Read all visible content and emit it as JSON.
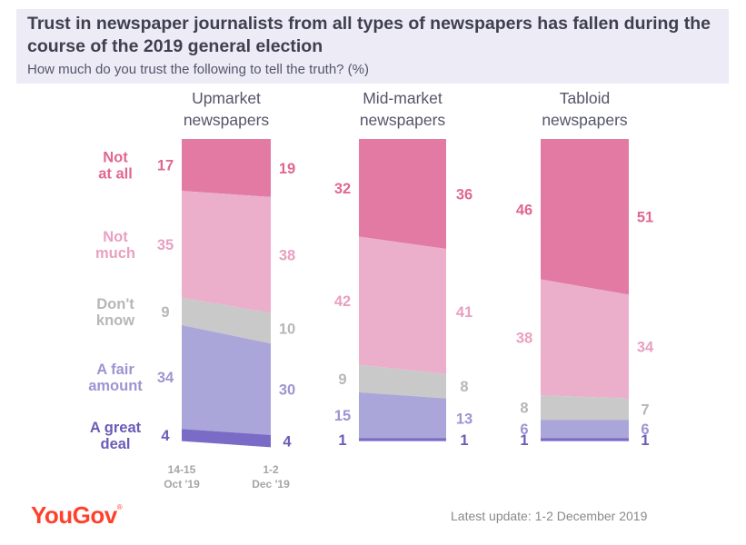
{
  "header": {
    "title": "Trust in newspaper journalists from all types of newspapers has fallen during the course of the 2019 general election",
    "subtitle": "How much do you trust the following to tell the truth? (%)"
  },
  "footer": {
    "logo": "YouGov",
    "note": "Latest update: 1-2 December 2019"
  },
  "chart_data": {
    "type": "area",
    "x_labels": [
      [
        "14-15",
        "Oct '19"
      ],
      [
        "1-2",
        "Dec '19"
      ]
    ],
    "categories": [
      {
        "key": "not_at_all",
        "label": [
          "Not",
          "at all"
        ],
        "color": "#e27aa3"
      },
      {
        "key": "not_much",
        "label": [
          "Not",
          "much"
        ],
        "color": "#ebaecb"
      },
      {
        "key": "dont_know",
        "label": [
          "Don't",
          "know"
        ],
        "color": "#c9c9c9"
      },
      {
        "key": "fair_amount",
        "label": [
          "A fair",
          "amount"
        ],
        "color": "#aba6da"
      },
      {
        "key": "great_deal",
        "label": [
          "A great",
          "deal"
        ],
        "color": "#7a6bc7"
      }
    ],
    "value_label_colors": {
      "not_at_all": "#e0688f",
      "not_much": "#ea9fc1",
      "dont_know": "#b7b7b7",
      "fair_amount": "#9d95d2",
      "great_deal": "#6c5bb8"
    },
    "panels": [
      {
        "name": [
          "Upmarket",
          "newspapers"
        ],
        "start": {
          "not_at_all": 17,
          "not_much": 35,
          "dont_know": 9,
          "fair_amount": 34,
          "great_deal": 4
        },
        "end": {
          "not_at_all": 19,
          "not_much": 38,
          "dont_know": 10,
          "fair_amount": 30,
          "great_deal": 4
        }
      },
      {
        "name": [
          "Mid-market",
          "newspapers"
        ],
        "start": {
          "not_at_all": 32,
          "not_much": 42,
          "dont_know": 9,
          "fair_amount": 15,
          "great_deal": 1
        },
        "end": {
          "not_at_all": 36,
          "not_much": 41,
          "dont_know": 8,
          "fair_amount": 13,
          "great_deal": 1
        }
      },
      {
        "name": [
          "Tabloid",
          "newspapers"
        ],
        "start": {
          "not_at_all": 46,
          "not_much": 38,
          "dont_know": 8,
          "fair_amount": 6,
          "great_deal": 1
        },
        "end": {
          "not_at_all": 51,
          "not_much": 34,
          "dont_know": 7,
          "fair_amount": 6,
          "great_deal": 1
        }
      }
    ]
  }
}
